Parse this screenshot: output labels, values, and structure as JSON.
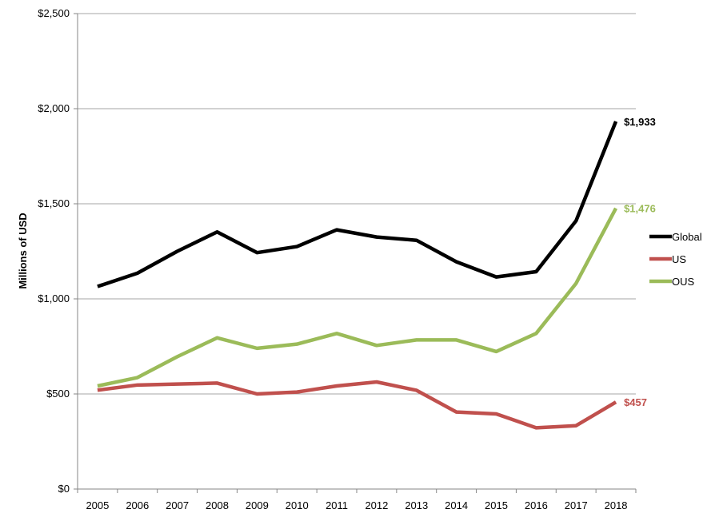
{
  "chart_data": {
    "type": "line",
    "title": "",
    "xlabel": "",
    "ylabel": "Millions of USD",
    "categories": [
      "2005",
      "2006",
      "2007",
      "2008",
      "2009",
      "2010",
      "2011",
      "2012",
      "2013",
      "2014",
      "2015",
      "2016",
      "2017",
      "2018"
    ],
    "ylim": [
      0,
      2500
    ],
    "yticks": [
      0,
      500,
      1000,
      1500,
      2000,
      2500
    ],
    "ytick_labels": [
      "$0",
      "$500",
      "$1,000",
      "$1,500",
      "$2,000",
      "$2,500"
    ],
    "grid": true,
    "legend_position": "right",
    "series": [
      {
        "name": "Global",
        "color": "#000000",
        "values": [
          1065,
          1135,
          1250,
          1352,
          1243,
          1275,
          1363,
          1325,
          1308,
          1195,
          1115,
          1143,
          1410,
          1933
        ],
        "end_label": "$1,933"
      },
      {
        "name": "US",
        "color": "#c0504d",
        "values": [
          520,
          547,
          552,
          557,
          500,
          510,
          542,
          563,
          519,
          405,
          395,
          322,
          333,
          457
        ],
        "end_label": "$457"
      },
      {
        "name": "OUS",
        "color": "#9bbb59",
        "values": [
          542,
          586,
          696,
          795,
          740,
          762,
          818,
          755,
          784,
          784,
          723,
          818,
          1081,
          1476
        ],
        "end_label": "$1,476"
      }
    ]
  }
}
